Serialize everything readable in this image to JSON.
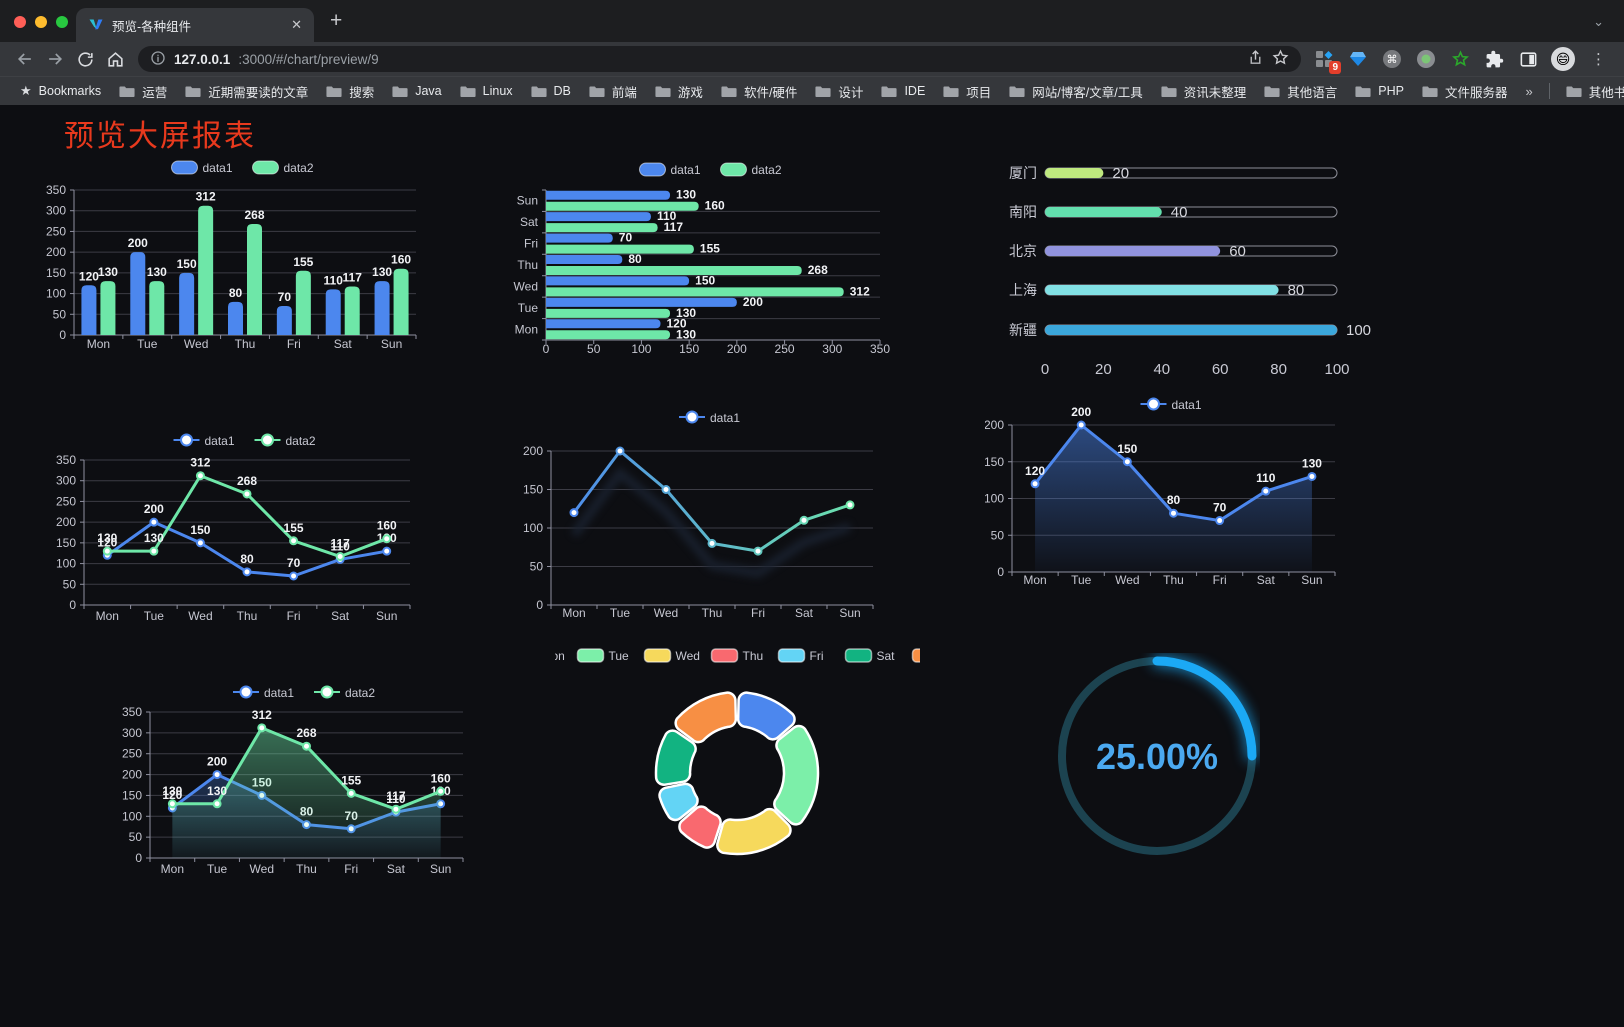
{
  "browser": {
    "traffic_lights": [
      "#FF5F57",
      "#FEBC2E",
      "#28C840"
    ],
    "tab_title": "预览-各种组件",
    "tab_close": "✕",
    "new_tab": "+",
    "strip_chevron": "⌄",
    "url_host": "127.0.0.1",
    "url_rest": ":3000/#/chart/preview/9",
    "extension_badge": "9",
    "bookmarks_label": "Bookmarks",
    "folders": [
      "运营",
      "近期需要读的文章",
      "搜索",
      "Java",
      "Linux",
      "DB",
      "前端",
      "游戏",
      "软件/硬件",
      "设计",
      "IDE",
      "项目",
      "网站/博客/文章/工具",
      "资讯未整理",
      "其他语言",
      "PHP",
      "文件服务器"
    ],
    "overflow_chevron": "»",
    "other_bookmarks": "其他书签"
  },
  "page": {
    "title": "预览大屏报表",
    "title_color": "#E8391D",
    "background": "#0D0E12"
  },
  "chart_data": [
    {
      "id": "grouped-bar",
      "type": "bar",
      "legend_position": "top",
      "grid": true,
      "value_labels": true,
      "categories": [
        "Mon",
        "Tue",
        "Wed",
        "Thu",
        "Fri",
        "Sat",
        "Sun"
      ],
      "series": [
        {
          "name": "data1",
          "color": "#4C87EE",
          "values": [
            120,
            200,
            150,
            80,
            70,
            110,
            130
          ]
        },
        {
          "name": "data2",
          "color": "#6EE7A8",
          "values": [
            130,
            130,
            312,
            268,
            155,
            117,
            160
          ]
        }
      ],
      "ylim": [
        0,
        350
      ],
      "ystep": 50
    },
    {
      "id": "horizontal-bar",
      "type": "bar-horizontal",
      "legend_position": "top",
      "grid": true,
      "value_labels": true,
      "categories": [
        "Mon",
        "Tue",
        "Wed",
        "Thu",
        "Fri",
        "Sat",
        "Sun"
      ],
      "display_top_to_bottom": [
        "Sun",
        "Sat",
        "Fri",
        "Thu",
        "Wed",
        "Tue",
        "Mon"
      ],
      "series": [
        {
          "name": "data1",
          "color": "#4C87EE",
          "values": [
            120,
            200,
            150,
            80,
            70,
            110,
            130
          ]
        },
        {
          "name": "data2",
          "color": "#6EE7A8",
          "values": [
            130,
            130,
            312,
            268,
            155,
            117,
            160
          ]
        }
      ],
      "xlim": [
        0,
        350
      ],
      "xstep": 50
    },
    {
      "id": "capsule-progress",
      "type": "capsule-bar",
      "xlim": [
        0,
        100
      ],
      "xticks": [
        0,
        20,
        40,
        60,
        80,
        100
      ],
      "rows": [
        {
          "label": "厦门",
          "value": 20,
          "color": "#BFE97F"
        },
        {
          "label": "南阳",
          "value": 40,
          "color": "#63DFAE"
        },
        {
          "label": "北京",
          "value": 60,
          "color": "#9193DE"
        },
        {
          "label": "上海",
          "value": 80,
          "color": "#81E0E4"
        },
        {
          "label": "新疆",
          "value": 100,
          "color": "#3BA7DB"
        }
      ]
    },
    {
      "id": "two-line",
      "type": "line",
      "legend_position": "top",
      "grid": true,
      "value_labels": true,
      "categories": [
        "Mon",
        "Tue",
        "Wed",
        "Thu",
        "Fri",
        "Sat",
        "Sun"
      ],
      "series": [
        {
          "name": "data1",
          "color": "#4C87EE",
          "values": [
            120,
            200,
            150,
            80,
            70,
            110,
            130
          ]
        },
        {
          "name": "data2",
          "color": "#6EE7A8",
          "values": [
            130,
            130,
            312,
            268,
            155,
            117,
            160
          ]
        }
      ],
      "ylim": [
        0,
        350
      ],
      "ystep": 50
    },
    {
      "id": "gradient-line",
      "type": "line",
      "legend_position": "top",
      "grid": true,
      "value_labels": false,
      "shadow": true,
      "categories": [
        "Mon",
        "Tue",
        "Wed",
        "Thu",
        "Fri",
        "Sat",
        "Sun"
      ],
      "series": [
        {
          "name": "data1",
          "gradient": [
            "#4C87EE",
            "#6EE7A8"
          ],
          "values": [
            120,
            200,
            150,
            80,
            70,
            110,
            130
          ]
        }
      ],
      "ylim": [
        0,
        200
      ],
      "ystep": 50
    },
    {
      "id": "area-line",
      "type": "line",
      "area": true,
      "legend_position": "top",
      "grid": true,
      "value_labels": true,
      "categories": [
        "Mon",
        "Tue",
        "Wed",
        "Thu",
        "Fri",
        "Sat",
        "Sun"
      ],
      "series": [
        {
          "name": "data1",
          "color": "#4C87EE",
          "values": [
            120,
            200,
            150,
            80,
            70,
            110,
            130
          ]
        }
      ],
      "ylim": [
        0,
        200
      ],
      "ystep": 50
    },
    {
      "id": "two-area",
      "type": "line",
      "area": true,
      "legend_position": "top",
      "grid": true,
      "value_labels": true,
      "categories": [
        "Mon",
        "Tue",
        "Wed",
        "Thu",
        "Fri",
        "Sat",
        "Sun"
      ],
      "series": [
        {
          "name": "data1",
          "color": "#4C87EE",
          "values": [
            120,
            200,
            150,
            80,
            70,
            110,
            130
          ]
        },
        {
          "name": "data2",
          "color": "#6EE7A8",
          "values": [
            130,
            130,
            312,
            268,
            155,
            117,
            160
          ]
        }
      ],
      "ylim": [
        0,
        350
      ],
      "ystep": 50
    },
    {
      "id": "donut",
      "type": "pie",
      "legend_position": "top",
      "inner_radius_ratio": 0.58,
      "items": [
        {
          "label": "Mon",
          "value": 120,
          "color": "#4C87EE"
        },
        {
          "label": "Tue",
          "value": 200,
          "color": "#7CEFA9"
        },
        {
          "label": "Wed",
          "value": 150,
          "color": "#F6D95C"
        },
        {
          "label": "Thu",
          "value": 80,
          "color": "#F9696F"
        },
        {
          "label": "Fri",
          "value": 70,
          "color": "#63D4F5"
        },
        {
          "label": "Sat",
          "value": 110,
          "color": "#12B381"
        },
        {
          "label": "Sun",
          "value": 130,
          "color": "#F78F44"
        }
      ]
    },
    {
      "id": "gauge",
      "type": "gauge",
      "percent": 25,
      "label": "25.00%",
      "color": "#1BA9F5",
      "track_color": "#1C4350",
      "text_color": "#4BA9F0"
    }
  ]
}
